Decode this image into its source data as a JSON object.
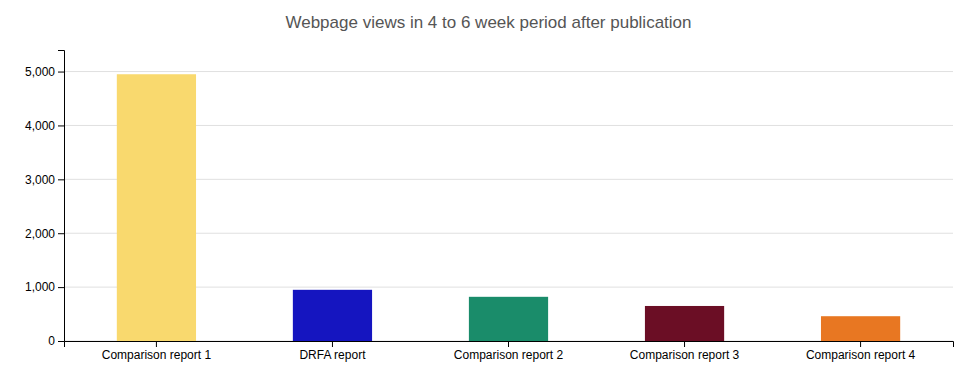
{
  "chart_data": {
    "type": "bar",
    "title": "Webpage views in 4 to 6 week period after publication",
    "categories": [
      "Comparison report 1",
      "DRFA report",
      "Comparison report 2",
      "Comparison report 3",
      "Comparison report 4"
    ],
    "values": [
      4950,
      950,
      820,
      650,
      460
    ],
    "colors": [
      "#F9D96E",
      "#1515C0",
      "#1A8C6A",
      "#6B0E25",
      "#E87722"
    ],
    "ylim": [
      0,
      5400
    ],
    "yticks": [
      0,
      {
        "value": 1000,
        "label": "1,000"
      },
      {
        "value": 2000,
        "label": "2,000"
      },
      {
        "value": 3000,
        "label": "3,000"
      },
      {
        "value": 4000,
        "label": "4,000"
      },
      {
        "value": 5000,
        "label": "5,000"
      }
    ],
    "grid": true
  }
}
